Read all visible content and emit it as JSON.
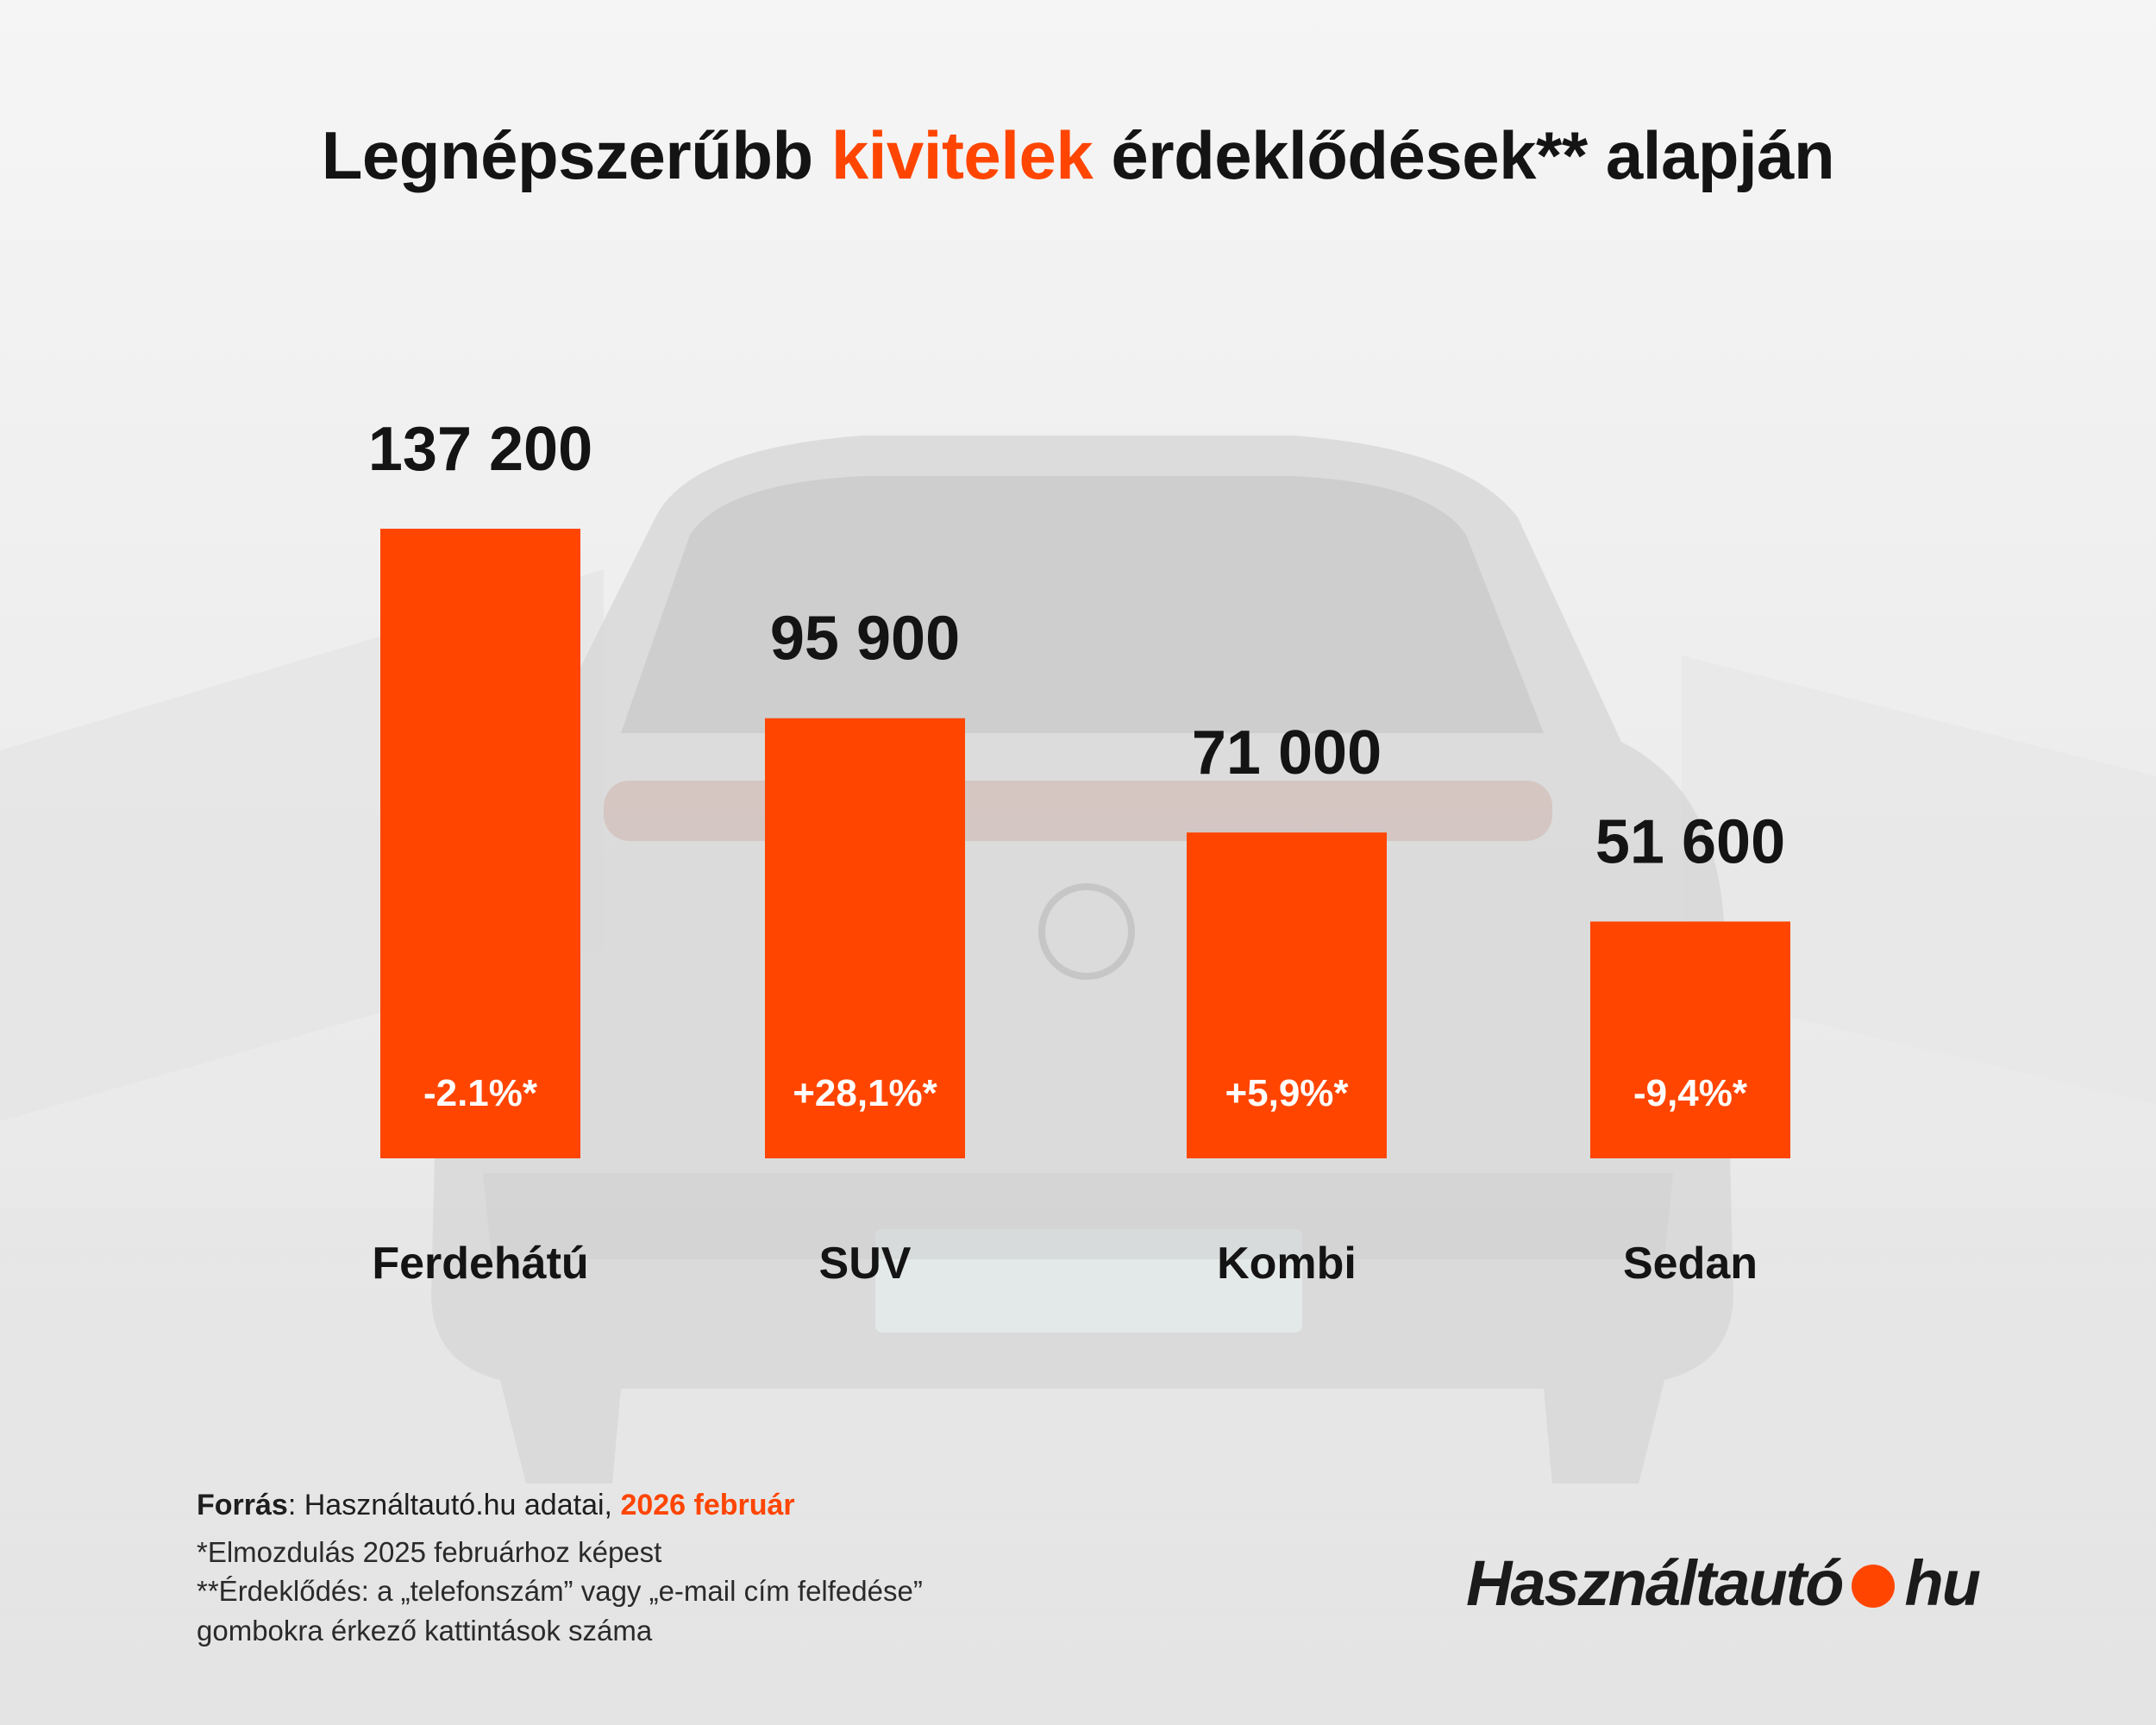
{
  "title": {
    "part1": "Legnépszerűbb ",
    "highlight": "kivitelek",
    "part2": " érdeklődések** alapján"
  },
  "colors": {
    "accent": "#ff4500",
    "text": "#141414",
    "change_text": "#ffffff"
  },
  "chart_data": {
    "type": "bar",
    "title": "Legnépszerűbb kivitelek érdeklődések** alapján",
    "categories": [
      "Ferdehátú",
      "SUV",
      "Kombi",
      "Sedan"
    ],
    "values": [
      137200,
      95900,
      71000,
      51600
    ],
    "value_labels": [
      "137 200",
      "95 900",
      "71 000",
      "51 600"
    ],
    "change_labels": [
      "-2.1%*",
      "+28,1%*",
      "+5,9%*",
      "-9,4%*"
    ],
    "ylim": [
      0,
      137200
    ],
    "grid": false,
    "legend": "none"
  },
  "footer": {
    "source_label": "Forrás",
    "source_sep": ": ",
    "source_text": "Használtautó.hu adatai, ",
    "source_date": "2026 február",
    "note1": "*Elmozdulás 2025 februárhoz képest",
    "note2": "**Érdeklődés: a „telefonszám” vagy „e-mail cím felfedése”",
    "note3": "gombokra érkező kattintások száma"
  },
  "logo": {
    "left": "Használtautó",
    "right": "hu"
  }
}
